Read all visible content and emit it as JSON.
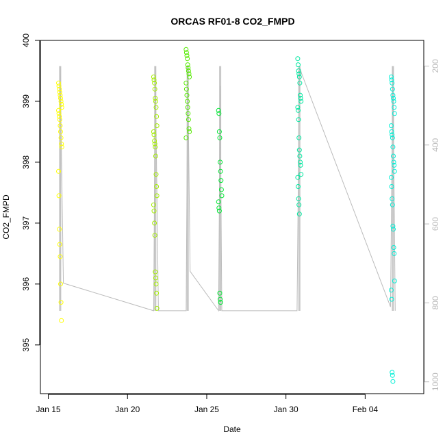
{
  "chart_data": {
    "type": "scatter",
    "title": "ORCAS RF01-8 CO2_FMPD",
    "xlabel": "Date",
    "ylabel": "CO2_FMPD",
    "x_ticks": [
      "Jan 15",
      "Jan 20",
      "Jan 25",
      "Jan 30",
      "Feb 04"
    ],
    "y_ticks": [
      "395",
      "396",
      "397",
      "398",
      "399",
      "400"
    ],
    "y2_ticks": [
      "200",
      "400",
      "600",
      "800",
      "1000"
    ],
    "x_range_days": [
      14.5,
      38.7
    ],
    "ylim": [
      394.2,
      400.0
    ],
    "y2lim": [
      1030,
      135
    ],
    "y2_direction": "reversed",
    "colors": {
      "rf01": "#ffff00",
      "rf02": "#a4ee00",
      "rf03": "#55ea00",
      "rf04": "#00e633",
      "rf05": "#00e8a0",
      "rf06": "#00efd6",
      "pressure_line": "#bbbbbb"
    },
    "series": [
      {
        "day": 15.75,
        "color": "#ffff00",
        "values": [
          399.3,
          399.25,
          399.2,
          399.15,
          399.1,
          399.05,
          399.0,
          398.95,
          398.9,
          398.85,
          398.8,
          398.75,
          398.7,
          398.6,
          398.5,
          398.4,
          398.3,
          398.25,
          397.85,
          397.45,
          396.9,
          396.65,
          396.45,
          396.0,
          395.7,
          395.4
        ]
      },
      {
        "day": 21.75,
        "color": "#a4ee00",
        "values": [
          399.4,
          399.35,
          399.3,
          399.2,
          399.05,
          399.0,
          398.9,
          398.75,
          398.6,
          398.5,
          398.45,
          398.35,
          398.3,
          398.25,
          398.1,
          397.8,
          397.6,
          397.45,
          397.3,
          397.2,
          397.0,
          396.8,
          396.2,
          396.1,
          396.0,
          395.85,
          395.6
        ]
      },
      {
        "day": 23.8,
        "color": "#55ea00",
        "values": [
          399.85,
          399.8,
          399.75,
          399.7,
          399.6,
          399.55,
          399.5,
          399.45,
          399.4,
          399.3,
          399.2,
          399.1,
          399.0,
          398.9,
          398.8,
          398.7,
          398.55,
          398.5,
          398.4
        ]
      },
      {
        "day": 25.85,
        "color": "#00e633",
        "values": [
          398.85,
          398.8,
          398.5,
          398.4,
          398.0,
          397.85,
          397.7,
          397.55,
          397.45,
          397.35,
          397.25,
          397.2,
          395.85,
          395.75,
          395.7
        ]
      },
      {
        "day": 30.85,
        "color": "#00e8a0",
        "values": [
          399.7,
          399.6,
          399.5,
          399.45,
          399.4,
          399.3,
          399.1,
          399.05,
          399.0,
          398.9,
          398.85,
          398.7,
          398.4,
          398.2,
          398.1,
          398.0,
          397.95,
          397.8,
          397.75,
          397.6,
          397.4,
          397.3,
          397.15
        ]
      },
      {
        "day": 36.75,
        "color": "#00efd6",
        "values": [
          399.4,
          399.35,
          399.3,
          399.2,
          399.1,
          399.05,
          399.0,
          398.9,
          398.8,
          398.6,
          398.5,
          398.45,
          398.4,
          398.25,
          398.1,
          398.0,
          397.95,
          397.85,
          397.75,
          397.6,
          397.4,
          397.3,
          396.95,
          396.9,
          396.6,
          396.5,
          396.05,
          395.9,
          395.75,
          394.55,
          394.5,
          394.4
        ]
      }
    ],
    "pressure_line": {
      "points": [
        [
          15.75,
          800
        ],
        [
          15.75,
          200
        ],
        [
          15.95,
          750
        ],
        [
          21.65,
          820
        ],
        [
          21.75,
          200
        ],
        [
          21.95,
          820
        ],
        [
          23.7,
          820
        ],
        [
          23.8,
          200
        ],
        [
          23.95,
          720
        ],
        [
          25.75,
          820
        ],
        [
          25.85,
          250
        ],
        [
          25.95,
          820
        ],
        [
          30.7,
          820
        ],
        [
          30.85,
          200
        ],
        [
          31.0,
          220
        ],
        [
          36.6,
          810
        ],
        [
          36.75,
          200
        ],
        [
          36.9,
          820
        ]
      ]
    }
  }
}
